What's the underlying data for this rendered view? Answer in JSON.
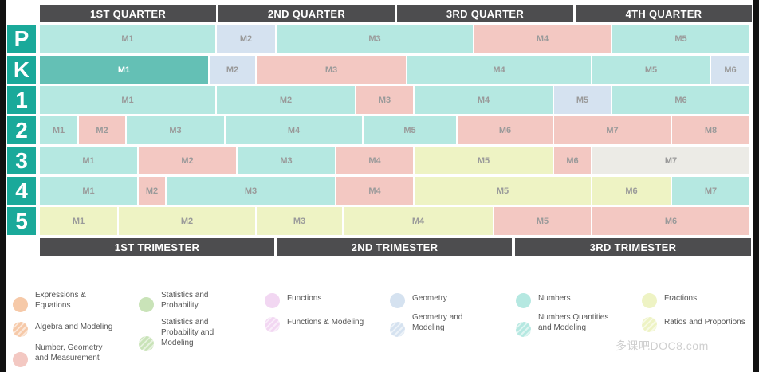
{
  "quarters": [
    "1ST QUARTER",
    "2ND QUARTER",
    "3RD QUARTER",
    "4TH QUARTER"
  ],
  "trimesters": [
    "1ST TRIMESTER",
    "2ND TRIMESTER",
    "3RD TRIMESTER"
  ],
  "grades": [
    {
      "label": "P",
      "modules": [
        "M1",
        "M2",
        "M3",
        "M4",
        "M5"
      ]
    },
    {
      "label": "K",
      "modules": [
        "M1",
        "M2",
        "M3",
        "M4",
        "M5",
        "M6"
      ]
    },
    {
      "label": "1",
      "modules": [
        "M1",
        "M2",
        "M3",
        "M4",
        "M5",
        "M6"
      ]
    },
    {
      "label": "2",
      "modules": [
        "M1",
        "M2",
        "M3",
        "M4",
        "M5",
        "M6",
        "M7",
        "M8"
      ]
    },
    {
      "label": "3",
      "modules": [
        "M1",
        "M2",
        "M3",
        "M4",
        "M5",
        "M6",
        "M7"
      ]
    },
    {
      "label": "4",
      "modules": [
        "M1",
        "M2",
        "M3",
        "M4",
        "M5",
        "M6",
        "M7"
      ]
    },
    {
      "label": "5",
      "modules": [
        "M1",
        "M2",
        "M3",
        "M4",
        "M5",
        "M6"
      ]
    }
  ],
  "legend": [
    {
      "label": "Expressions & Equations",
      "color": "#f6c9a8",
      "striped": false
    },
    {
      "label": "Algebra and Modeling",
      "color": "#f6c9a8",
      "striped": true
    },
    {
      "label": "Number, Geometry and Measurement",
      "color": "#f3c8c2",
      "striped": false
    },
    {
      "label": "Statistics and Probability",
      "color": "#c9e3b8",
      "striped": false
    },
    {
      "label": "Statistics and Probability and Modeling",
      "color": "#c9e3b8",
      "striped": true
    },
    {
      "label": "Functions",
      "color": "#f2d7f2",
      "striped": false
    },
    {
      "label": "Functions & Modeling",
      "color": "#f2d7f2",
      "striped": true
    },
    {
      "label": "Geometry",
      "color": "#d5e2f0",
      "striped": false
    },
    {
      "label": "Geometry and Modeling",
      "color": "#d5e2f0",
      "striped": true
    },
    {
      "label": "Numbers",
      "color": "#b5e8e1",
      "striped": false
    },
    {
      "label": "Numbers Quantities and Modeling",
      "color": "#b5e8e1",
      "striped": true
    },
    {
      "label": "Fractions",
      "color": "#eef3c4",
      "striped": false
    },
    {
      "label": "Ratios and Proportions",
      "color": "#eef3c4",
      "striped": true
    }
  ],
  "watermark": "多课吧DOC8.com"
}
